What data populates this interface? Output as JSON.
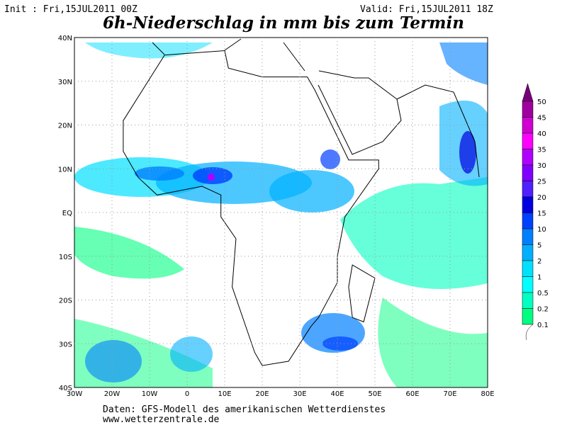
{
  "header": {
    "init": "Init : Fri,15JUL2011 00Z",
    "valid": "Valid: Fri,15JUL2011 18Z",
    "title": "6h-Niederschlag in mm bis zum Termin"
  },
  "map": {
    "lat_labels": [
      "40N",
      "30N",
      "20N",
      "10N",
      "EQ",
      "10S",
      "20S",
      "30S",
      "40S"
    ],
    "lon_labels": [
      "30W",
      "20W",
      "10W",
      "0",
      "10E",
      "20E",
      "30E",
      "40E",
      "50E",
      "60E",
      "70E",
      "80E"
    ]
  },
  "legend": {
    "levels": [
      50,
      45,
      40,
      35,
      30,
      25,
      20,
      15,
      10,
      5,
      2,
      1,
      0.5,
      0.2,
      0.1
    ],
    "colors": [
      "#7a007a",
      "#a000a0",
      "#d000d0",
      "#ff00ff",
      "#b000ff",
      "#8000ff",
      "#5020ff",
      "#0000e0",
      "#0040ff",
      "#0080ff",
      "#00b0ff",
      "#00e0ff",
      "#00ffff",
      "#00ffc0",
      "#00ff80"
    ]
  },
  "footer": [
    "Daten: GFS-Modell des amerikanischen Wetterdienstes",
    "www.wetterzentrale.de"
  ]
}
